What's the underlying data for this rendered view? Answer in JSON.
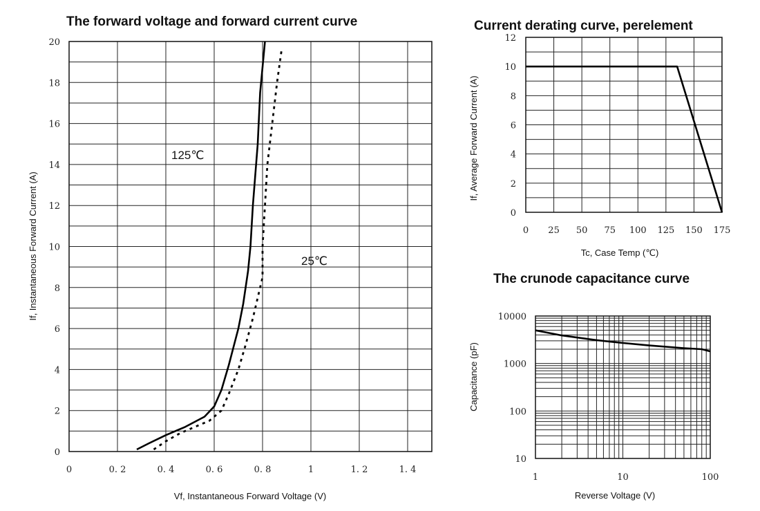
{
  "chart_data": [
    {
      "type": "line",
      "title": "The forward voltage and forward current curve",
      "xlabel": "Vf, Instantaneous Forward Voltage (V)",
      "ylabel": "If, Instantaneous Forward Current (A)",
      "xlim": [
        0,
        1.5
      ],
      "ylim": [
        0,
        20
      ],
      "x_ticks": [
        "0",
        "0. 2",
        "0. 4",
        "0. 6",
        "0. 8",
        "1",
        "1. 2",
        "1. 4"
      ],
      "y_ticks": [
        "0",
        "2",
        "4",
        "6",
        "8",
        "10",
        "12",
        "14",
        "16",
        "18",
        "20"
      ],
      "grid": true,
      "annotations": [
        "125℃",
        "25℃"
      ],
      "series": [
        {
          "name": "125℃",
          "style": "solid",
          "x": [
            0.28,
            0.33,
            0.4,
            0.48,
            0.56,
            0.6,
            0.63,
            0.66,
            0.7,
            0.72,
            0.74,
            0.75,
            0.76,
            0.78,
            0.79,
            0.81
          ],
          "y": [
            0.1,
            0.4,
            0.8,
            1.2,
            1.7,
            2.2,
            3.0,
            4.2,
            6.0,
            7.2,
            8.8,
            10.0,
            12.0,
            15.0,
            17.5,
            20.0
          ]
        },
        {
          "name": "25℃",
          "style": "dotted",
          "x": [
            0.35,
            0.4,
            0.46,
            0.52,
            0.58,
            0.63,
            0.66,
            0.7,
            0.73,
            0.76,
            0.78,
            0.8,
            0.8,
            0.81,
            0.82,
            0.84,
            0.86,
            0.88
          ],
          "y": [
            0.1,
            0.5,
            0.9,
            1.2,
            1.5,
            2.0,
            2.8,
            4.0,
            5.2,
            6.5,
            7.5,
            8.5,
            10.0,
            12.0,
            14.0,
            16.0,
            18.0,
            19.7
          ]
        }
      ]
    },
    {
      "type": "line",
      "title": "Current derating curve, perelement",
      "xlabel": "Tc, Case Temp (℃)",
      "ylabel": "If, Average Forward Current (A)",
      "xlim": [
        0,
        175
      ],
      "ylim": [
        0,
        12
      ],
      "x_ticks": [
        "0",
        "25",
        "50",
        "75",
        "100",
        "125",
        "150",
        "175"
      ],
      "y_ticks": [
        "0",
        "2",
        "4",
        "6",
        "8",
        "10",
        "12"
      ],
      "grid": true,
      "series": [
        {
          "x": [
            0,
            135,
            175
          ],
          "y": [
            10,
            10,
            0
          ]
        }
      ]
    },
    {
      "type": "line",
      "title": "The crunode capacitance curve",
      "xlabel": "Reverse Voltage (V)",
      "ylabel": "Capacitance (pF)",
      "xscale": "log",
      "yscale": "log",
      "xlim": [
        1,
        100
      ],
      "ylim": [
        10,
        10000
      ],
      "x_ticks": [
        "1",
        "10",
        "100"
      ],
      "y_ticks": [
        "10",
        "100",
        "1000",
        "10000"
      ],
      "grid": true,
      "series": [
        {
          "x": [
            1,
            2,
            5,
            10,
            20,
            50,
            80,
            100
          ],
          "y": [
            5000,
            3900,
            3100,
            2700,
            2400,
            2100,
            2000,
            1800
          ]
        }
      ]
    }
  ]
}
